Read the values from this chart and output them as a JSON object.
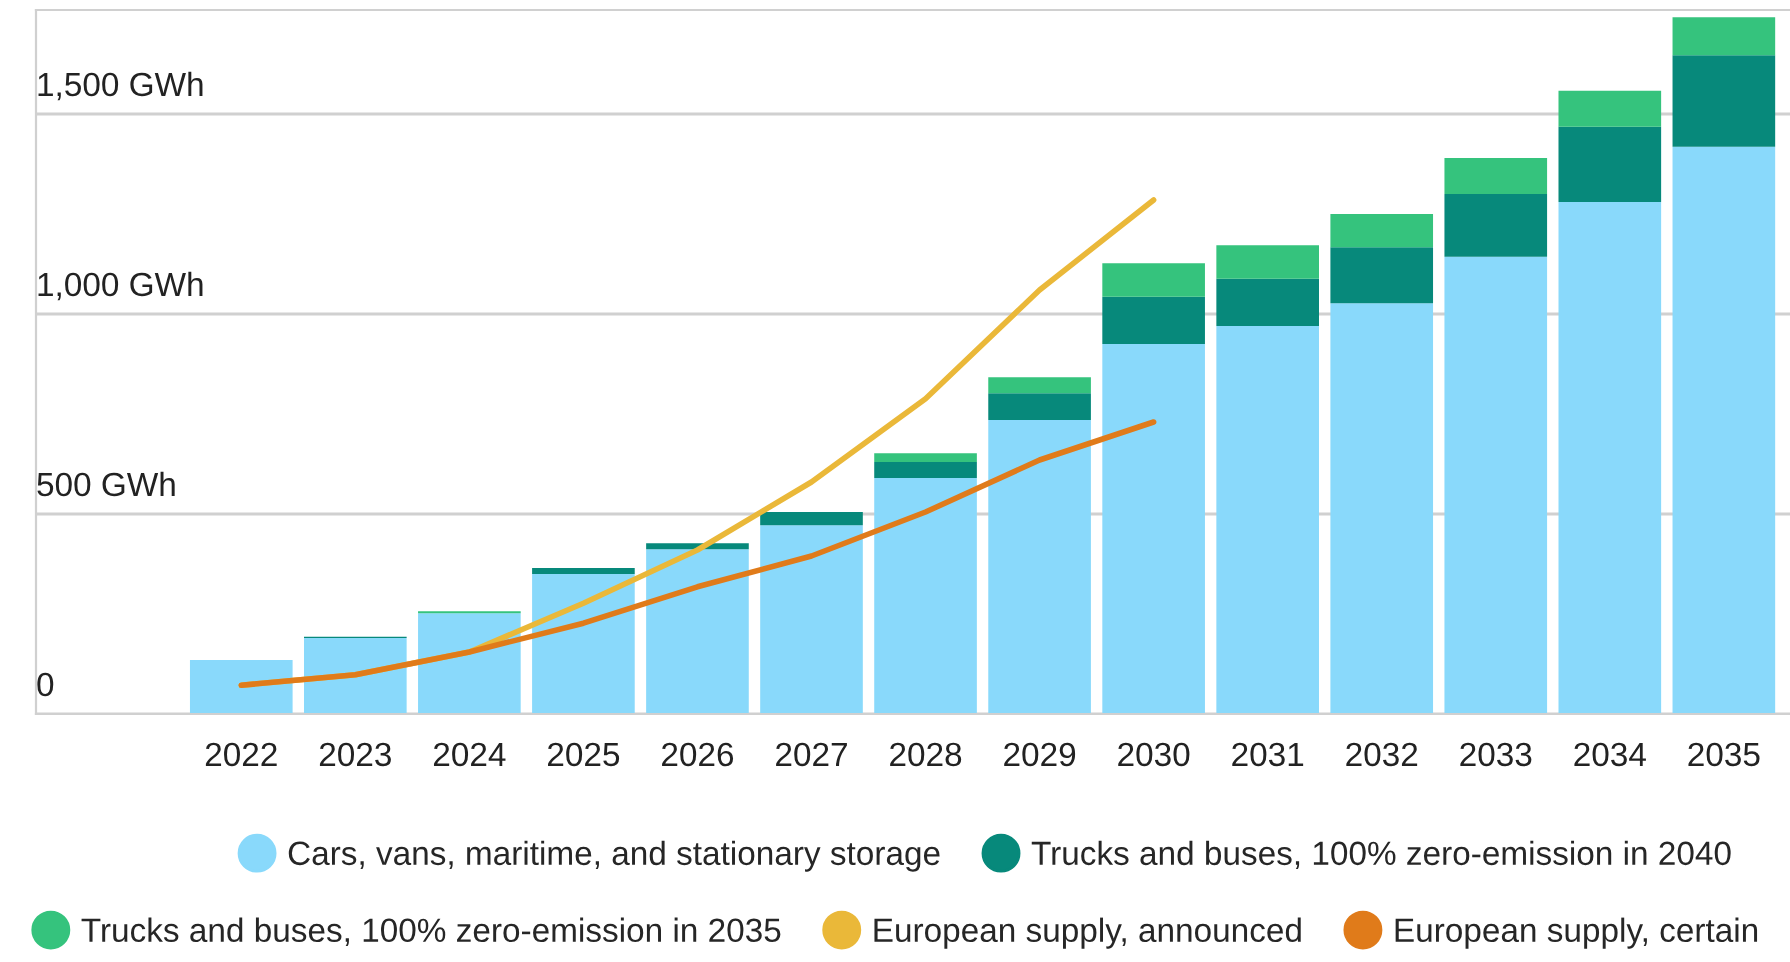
{
  "chart_data": {
    "type": "bar",
    "stacked": true,
    "categories": [
      "2022",
      "2023",
      "2024",
      "2025",
      "2026",
      "2027",
      "2028",
      "2029",
      "2030",
      "2031",
      "2032",
      "2033",
      "2034",
      "2035"
    ],
    "series": [
      {
        "name": "Cars, vans, maritime, and stationary storage",
        "color": "#89d9fb",
        "values": [
          135,
          190,
          252,
          350,
          412,
          472,
          590,
          735,
          925,
          970,
          1027,
          1143,
          1280,
          1418
        ]
      },
      {
        "name": "Trucks and buses, 100% zero-emission in 2040",
        "color": "#07897b",
        "values": [
          0,
          3,
          0,
          15,
          15,
          33,
          40,
          67,
          118,
          118,
          140,
          157,
          188,
          229
        ]
      },
      {
        "name": "Trucks and buses, 100% zero-emission in 2035",
        "color": "#35c37d",
        "values": [
          0,
          0,
          5,
          0,
          0,
          0,
          22,
          40,
          84,
          84,
          83,
          90,
          90,
          95
        ]
      },
      {
        "name": "European supply, announced",
        "type": "line",
        "color": "#eab839",
        "values": [
          72,
          98,
          155,
          277,
          410,
          580,
          788,
          1060,
          1285,
          null,
          null,
          null,
          null,
          null
        ]
      },
      {
        "name": "European supply, certain",
        "type": "line",
        "color": "#e07b1a",
        "values": [
          72,
          98,
          155,
          227,
          318,
          395,
          505,
          635,
          730,
          null,
          null,
          null,
          null,
          null
        ]
      }
    ],
    "ylim": [
      0,
      1760
    ],
    "yticks": [
      {
        "value": 0,
        "label": "0"
      },
      {
        "value": 500,
        "label": "500 GWh"
      },
      {
        "value": 1000,
        "label": "1,000 GWh"
      },
      {
        "value": 1500,
        "label": "1,500 GWh"
      }
    ],
    "grid": "y",
    "legend": "bottom",
    "marker": "none"
  }
}
